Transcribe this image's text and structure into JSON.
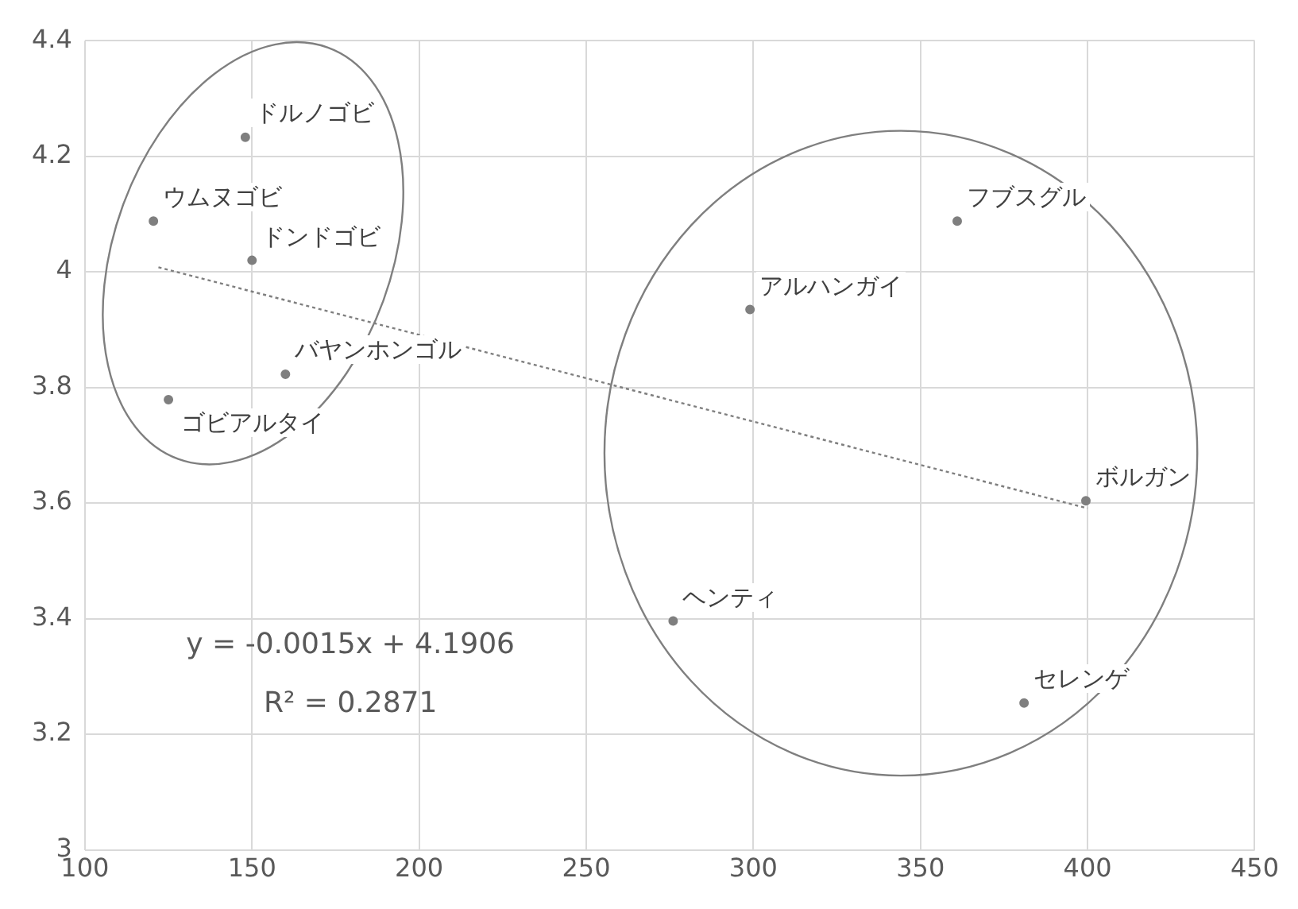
{
  "chart_data": {
    "type": "scatter",
    "series": [
      {
        "color": "#7f7f7f",
        "x": [
          148,
          120.5,
          150,
          125,
          160,
          299,
          361,
          399.5,
          276,
          381
        ],
        "values": [
          4.233,
          4.088,
          4.02,
          3.779,
          3.823,
          3.935,
          4.088,
          3.604,
          3.396,
          3.254
        ]
      },
      {
        "type": "line",
        "color": "#7f7f7f",
        "line_style": "dotted",
        "marker": "none",
        "x": [
          122,
          400
        ],
        "values": [
          4.008,
          3.591
        ]
      }
    ],
    "annotations": [
      {
        "text": "ドルノゴビ",
        "x": 148,
        "y": 4.233
      },
      {
        "text": "ウムヌゴビ",
        "x": 120.5,
        "y": 4.088
      },
      {
        "text": "ドンドゴビ",
        "x": 150,
        "y": 4.02
      },
      {
        "text": "ゴビアルタイ",
        "x": 125,
        "y": 3.779
      },
      {
        "text": "バヤンホンゴル",
        "x": 160,
        "y": 3.823
      },
      {
        "text": "アルハンガイ",
        "x": 299,
        "y": 3.935
      },
      {
        "text": "フブスグル",
        "x": 361,
        "y": 4.088
      },
      {
        "text": "ボルガン",
        "x": 399.5,
        "y": 3.604
      },
      {
        "text": "ヘンティ",
        "x": 276,
        "y": 3.396
      },
      {
        "text": "セレンゲ",
        "x": 381,
        "y": 3.254
      },
      "y = -0.0015x + 4.1906",
      "R² = 0.2871"
    ],
    "xlim": [
      100,
      450
    ],
    "xticks": [
      100,
      150,
      200,
      250,
      300,
      350,
      400,
      450
    ],
    "ylim": [
      3,
      4.4
    ],
    "yticks": [
      3,
      3.2,
      3.4,
      3.6,
      3.8,
      4,
      4.2,
      4.4
    ],
    "grid": true,
    "legend": false,
    "marker": "circle"
  }
}
